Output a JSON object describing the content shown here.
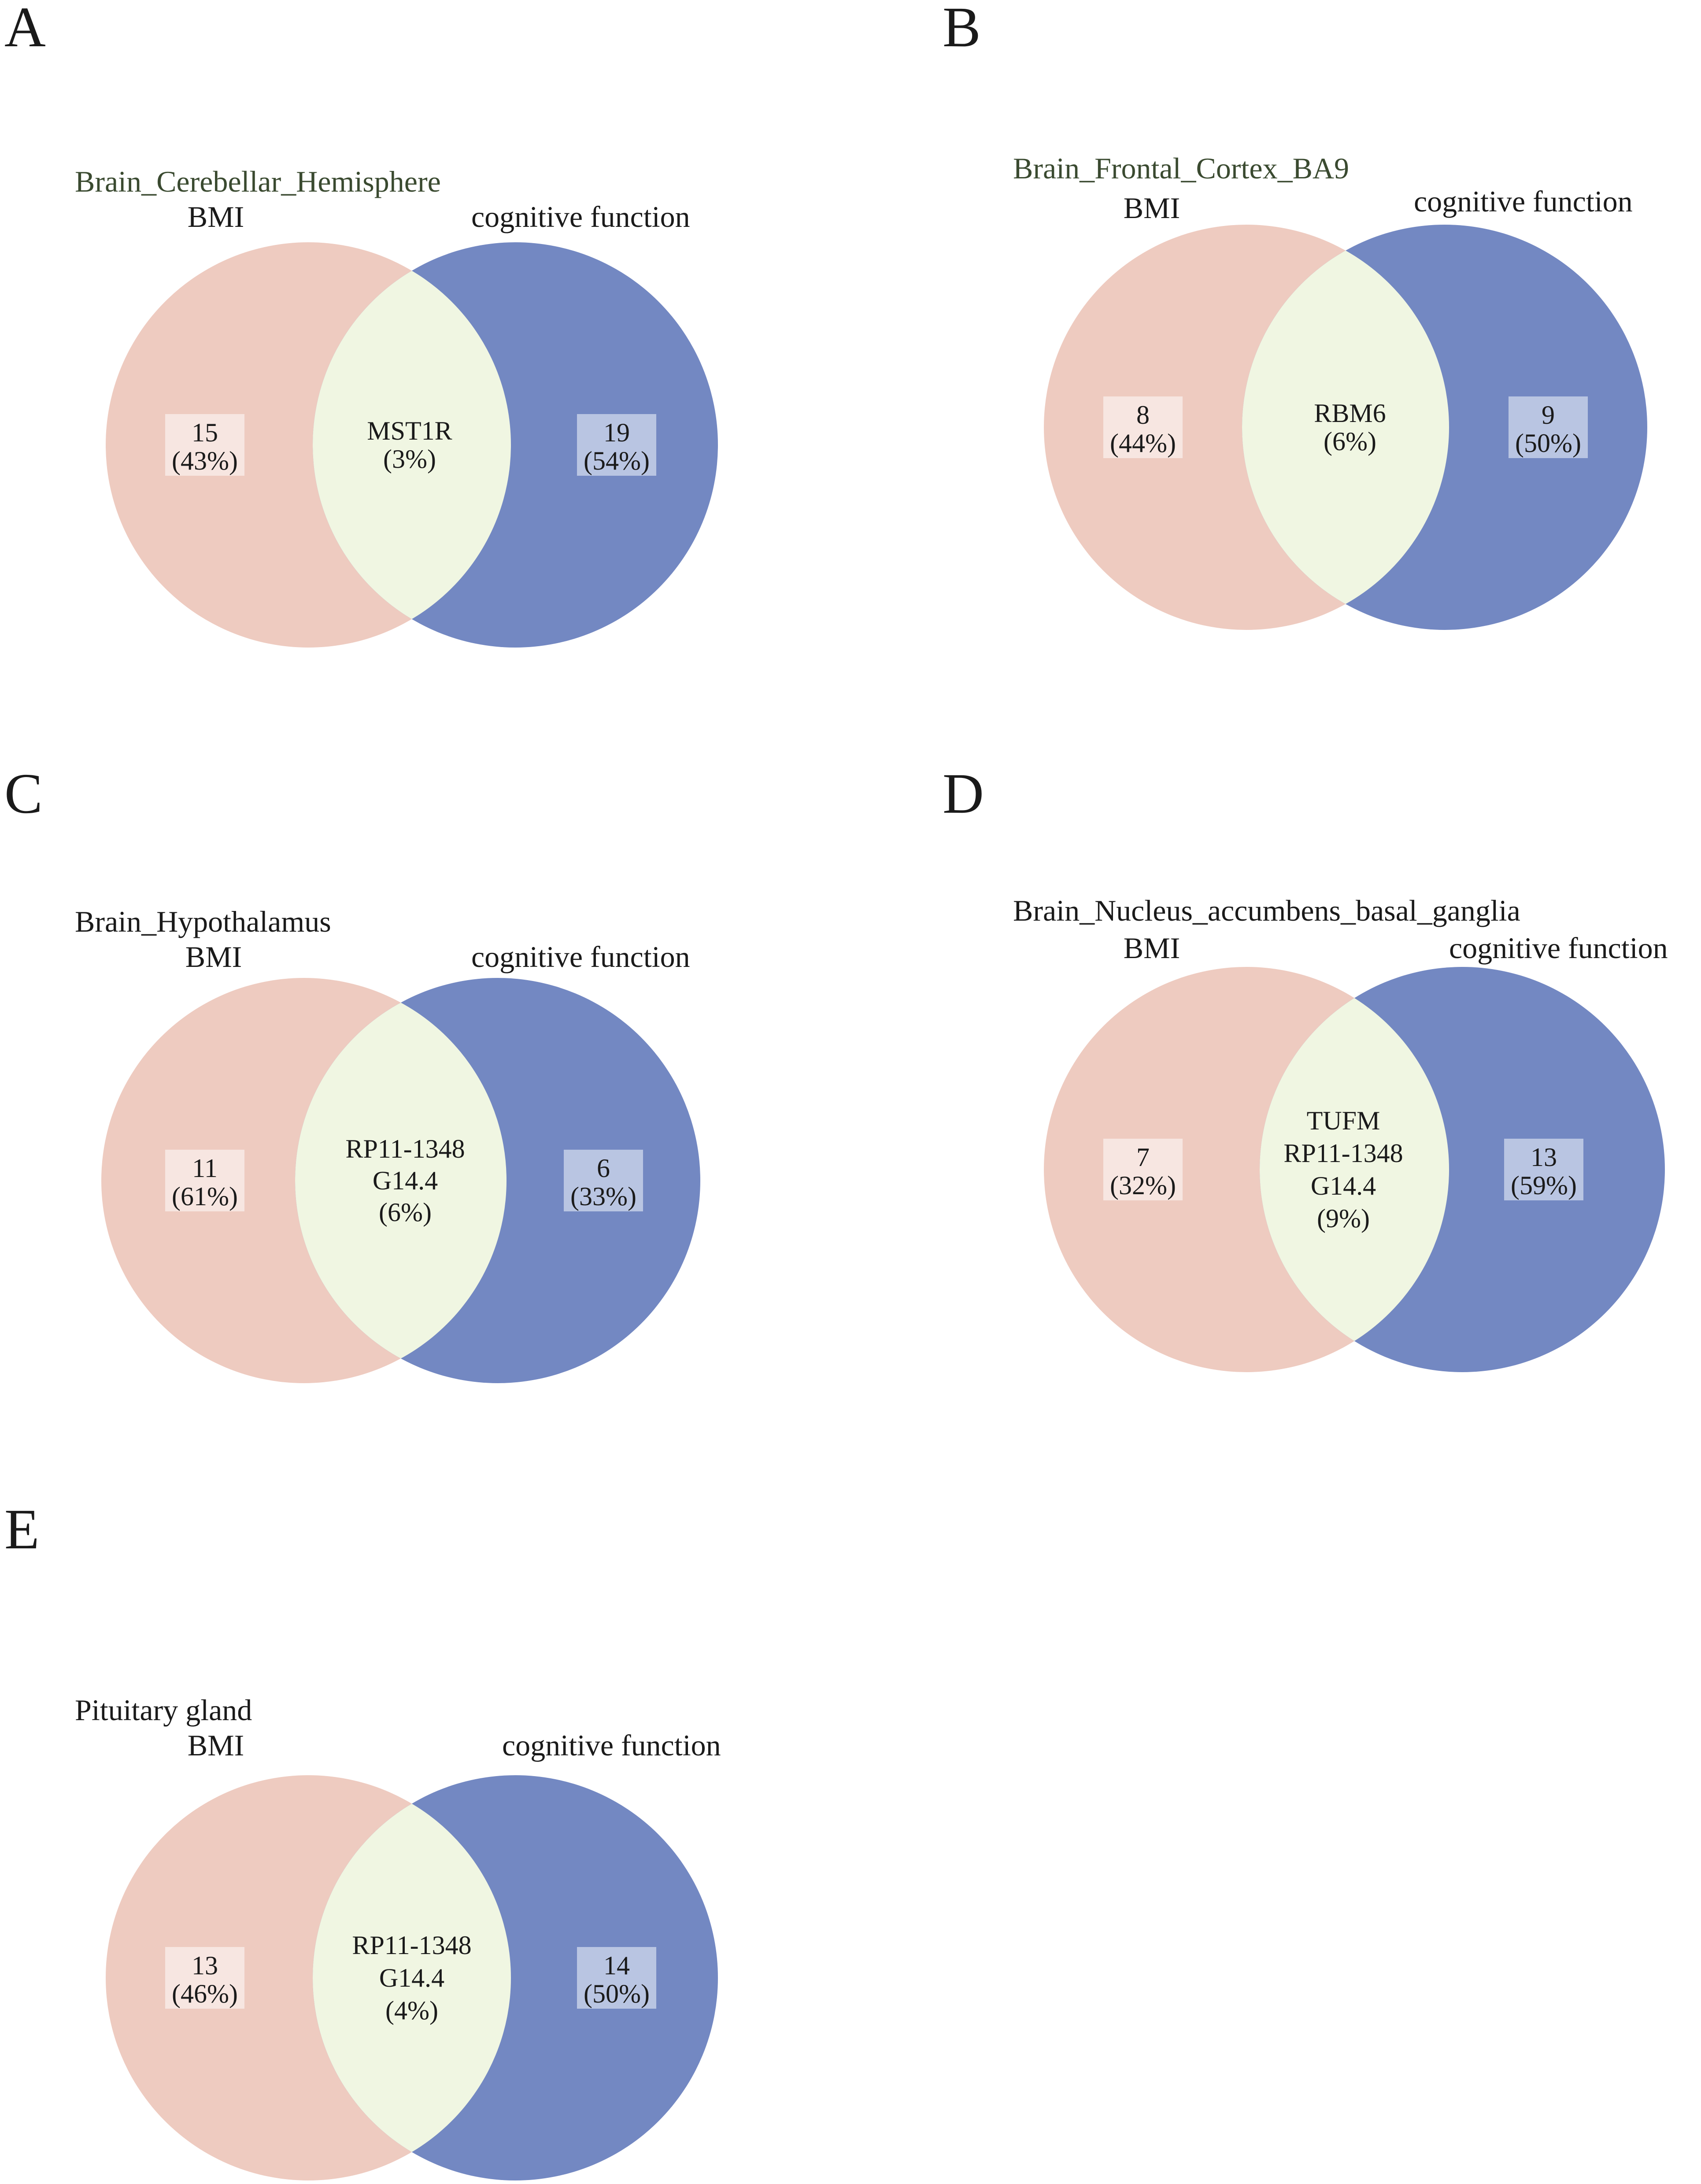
{
  "colors": {
    "bmi_circle": "#eecbc0",
    "cognitive_circle": "#7388c2",
    "overlap": "#f0f6e2",
    "bmi_badge": "#f7e6e1",
    "cognitive_badge": "#b9c5e2",
    "tissue_title_green": "#3a4a30",
    "tissue_title_black": "#1a1a1a"
  },
  "panels": [
    {
      "letter": "A",
      "tissue": "Brain_Cerebellar_Hemisphere",
      "left_label": "BMI",
      "right_label": "cognitive function",
      "left": {
        "count": "15",
        "percent": "(43%)"
      },
      "overlap": {
        "lines": [
          "MST1R",
          "(3%)"
        ]
      },
      "right": {
        "count": "19",
        "percent": "(54%)"
      }
    },
    {
      "letter": "B",
      "tissue": "Brain_Frontal_Cortex_BA9",
      "left_label": "BMI",
      "right_label": "cognitive function",
      "left": {
        "count": "8",
        "percent": "(44%)"
      },
      "overlap": {
        "lines": [
          "RBM6",
          "(6%)"
        ]
      },
      "right": {
        "count": "9",
        "percent": "(50%)"
      }
    },
    {
      "letter": "C",
      "tissue": "Brain_Hypothalamus",
      "left_label": "BMI",
      "right_label": "cognitive function",
      "left": {
        "count": "11",
        "percent": "(61%)"
      },
      "overlap": {
        "lines": [
          "RP11-1348",
          "G14.4",
          "(6%)"
        ]
      },
      "right": {
        "count": "6",
        "percent": "(33%)"
      }
    },
    {
      "letter": "D",
      "tissue": "Brain_Nucleus_accumbens_basal_ganglia",
      "left_label": "BMI",
      "right_label": "cognitive function",
      "left": {
        "count": "7",
        "percent": "(32%)"
      },
      "overlap": {
        "lines": [
          "TUFM",
          "RP11-1348",
          "G14.4",
          "(9%)"
        ]
      },
      "right": {
        "count": "13",
        "percent": "(59%)"
      }
    },
    {
      "letter": "E",
      "tissue": "Pituitary gland",
      "left_label": "BMI",
      "right_label": "cognitive function",
      "left": {
        "count": "13",
        "percent": "(46%)"
      },
      "overlap": {
        "lines": [
          "RP11-1348",
          "G14.4",
          "(4%)"
        ]
      },
      "right": {
        "count": "14",
        "percent": "(50%)"
      }
    }
  ]
}
